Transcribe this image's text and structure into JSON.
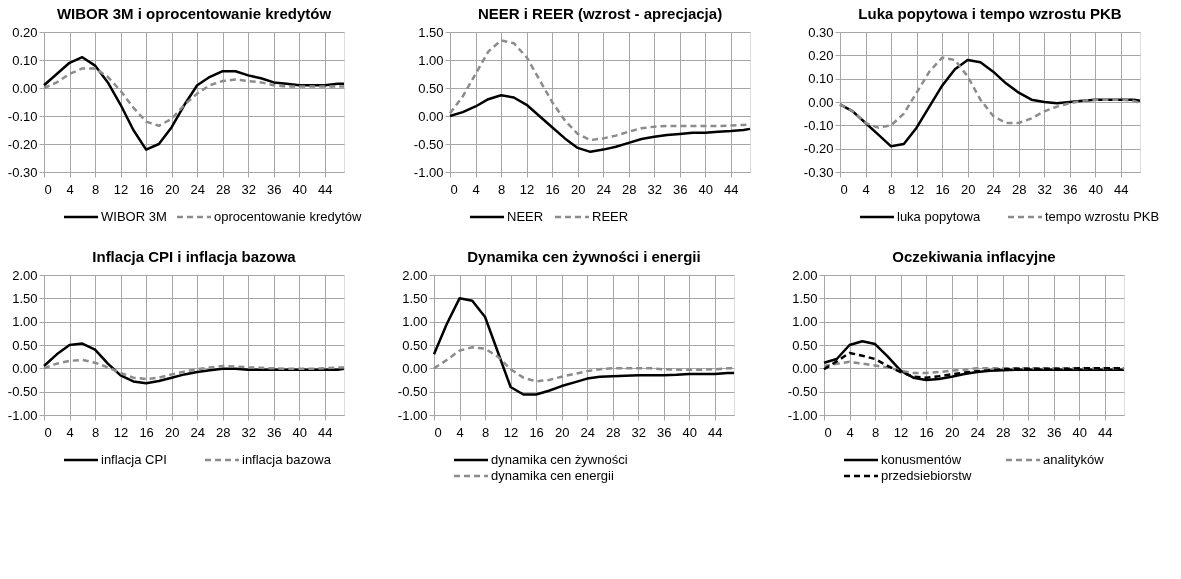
{
  "chart_data": [
    {
      "type": "line",
      "title": "WIBOR 3M i oprocentowanie kredytów",
      "legend": "bottom",
      "grid": true,
      "x": [
        0,
        2,
        4,
        6,
        8,
        10,
        12,
        14,
        16,
        18,
        20,
        22,
        24,
        26,
        28,
        30,
        32,
        34,
        36,
        38,
        40,
        42,
        44,
        46,
        47
      ],
      "xlim": [
        0,
        47
      ],
      "xticks": [
        0,
        4,
        8,
        12,
        16,
        20,
        24,
        28,
        32,
        36,
        40,
        44
      ],
      "ylim": [
        -0.3,
        0.2
      ],
      "yticks": [
        {
          "value": -0.3,
          "label": "-0.30"
        },
        {
          "value": -0.2,
          "label": "-0.20"
        },
        {
          "value": -0.1,
          "label": "-0.10"
        },
        {
          "value": 0,
          "label": "0.00"
        },
        {
          "value": 0.1,
          "label": "0.10"
        },
        {
          "value": 0.2,
          "label": "0.20"
        }
      ],
      "series": [
        {
          "name": "WIBOR 3M",
          "color": "#000000",
          "line_style": "solid",
          "values": [
            0.01,
            0.05,
            0.09,
            0.11,
            0.08,
            0.02,
            -0.06,
            -0.15,
            -0.22,
            -0.2,
            -0.14,
            -0.06,
            0.01,
            0.04,
            0.06,
            0.06,
            0.045,
            0.035,
            0.02,
            0.015,
            0.01,
            0.01,
            0.01,
            0.015,
            0.015
          ]
        },
        {
          "name": "oprocentowanie kredytów",
          "color": "#8c8c8c",
          "line_style": "dashed",
          "values": [
            0.0,
            0.02,
            0.05,
            0.07,
            0.07,
            0.04,
            -0.01,
            -0.07,
            -0.12,
            -0.135,
            -0.11,
            -0.06,
            -0.02,
            0.01,
            0.025,
            0.03,
            0.025,
            0.02,
            0.01,
            0.005,
            0.005,
            0.005,
            0.005,
            0.005,
            0.005
          ]
        }
      ]
    },
    {
      "type": "line",
      "title": "NEER i REER (wzrost - aprecjacja)",
      "legend": "bottom",
      "grid": true,
      "x": [
        0,
        2,
        4,
        6,
        8,
        10,
        12,
        14,
        16,
        18,
        20,
        22,
        24,
        26,
        28,
        30,
        32,
        34,
        36,
        38,
        40,
        42,
        44,
        46,
        47
      ],
      "xlim": [
        0,
        47
      ],
      "xticks": [
        0,
        4,
        8,
        12,
        16,
        20,
        24,
        28,
        32,
        36,
        40,
        44
      ],
      "ylim": [
        -1.0,
        1.5
      ],
      "yticks": [
        {
          "value": -1.0,
          "label": "-1.00"
        },
        {
          "value": -0.5,
          "label": "-0.50"
        },
        {
          "value": 0,
          "label": "0.00"
        },
        {
          "value": 0.5,
          "label": "0.50"
        },
        {
          "value": 1.0,
          "label": "1.00"
        },
        {
          "value": 1.5,
          "label": "1.50"
        }
      ],
      "series": [
        {
          "name": "NEER",
          "color": "#000000",
          "line_style": "solid",
          "values": [
            0.0,
            0.07,
            0.17,
            0.3,
            0.37,
            0.33,
            0.2,
            0.0,
            -0.2,
            -0.4,
            -0.57,
            -0.64,
            -0.6,
            -0.55,
            -0.48,
            -0.41,
            -0.37,
            -0.34,
            -0.32,
            -0.3,
            -0.3,
            -0.28,
            -0.27,
            -0.25,
            -0.23
          ]
        },
        {
          "name": "REER",
          "color": "#8c8c8c",
          "line_style": "dashed",
          "values": [
            0.05,
            0.35,
            0.75,
            1.15,
            1.35,
            1.3,
            1.05,
            0.65,
            0.25,
            -0.08,
            -0.32,
            -0.43,
            -0.4,
            -0.35,
            -0.28,
            -0.22,
            -0.19,
            -0.18,
            -0.18,
            -0.18,
            -0.18,
            -0.18,
            -0.17,
            -0.16,
            -0.15
          ]
        }
      ]
    },
    {
      "type": "line",
      "title": "Luka popytowa i tempo wzrostu PKB",
      "legend": "bottom",
      "grid": true,
      "x": [
        0,
        2,
        4,
        6,
        8,
        10,
        12,
        14,
        16,
        18,
        20,
        22,
        24,
        26,
        28,
        30,
        32,
        34,
        36,
        38,
        40,
        42,
        44,
        46,
        47
      ],
      "xlim": [
        0,
        47
      ],
      "xticks": [
        0,
        4,
        8,
        12,
        16,
        20,
        24,
        28,
        32,
        36,
        40,
        44
      ],
      "ylim": [
        -0.3,
        0.3
      ],
      "yticks": [
        {
          "value": -0.3,
          "label": "-0.30"
        },
        {
          "value": -0.2,
          "label": "-0.20"
        },
        {
          "value": -0.1,
          "label": "-0.10"
        },
        {
          "value": 0,
          "label": "0.00"
        },
        {
          "value": 0.1,
          "label": "0.10"
        },
        {
          "value": 0.2,
          "label": "0.20"
        },
        {
          "value": 0.3,
          "label": "0.30"
        }
      ],
      "series": [
        {
          "name": "luka popytowa",
          "color": "#000000",
          "line_style": "solid",
          "values": [
            -0.01,
            -0.04,
            -0.09,
            -0.14,
            -0.19,
            -0.18,
            -0.11,
            -0.02,
            0.07,
            0.14,
            0.18,
            0.17,
            0.13,
            0.08,
            0.04,
            0.01,
            0.0,
            -0.005,
            0.0,
            0.005,
            0.01,
            0.01,
            0.01,
            0.01,
            0.005
          ]
        },
        {
          "name": "tempo wzrostu PKB",
          "color": "#8c8c8c",
          "line_style": "dashed",
          "values": [
            -0.01,
            -0.04,
            -0.09,
            -0.11,
            -0.1,
            -0.05,
            0.04,
            0.13,
            0.19,
            0.18,
            0.11,
            0.01,
            -0.06,
            -0.09,
            -0.09,
            -0.07,
            -0.04,
            -0.02,
            -0.005,
            0.005,
            0.01,
            0.01,
            0.01,
            0.005,
            -0.005
          ]
        }
      ]
    },
    {
      "type": "line",
      "title": "Inflacja CPI i inflacja bazowa",
      "legend": "bottom",
      "grid": true,
      "x": [
        0,
        2,
        4,
        6,
        8,
        10,
        12,
        14,
        16,
        18,
        20,
        22,
        24,
        26,
        28,
        30,
        32,
        34,
        36,
        38,
        40,
        42,
        44,
        46,
        47
      ],
      "xlim": [
        0,
        47
      ],
      "xticks": [
        0,
        4,
        8,
        12,
        16,
        20,
        24,
        28,
        32,
        36,
        40,
        44
      ],
      "ylim": [
        -1.0,
        2.0
      ],
      "yticks": [
        {
          "value": -1.0,
          "label": "-1.00"
        },
        {
          "value": -0.5,
          "label": "-0.50"
        },
        {
          "value": 0,
          "label": "0.00"
        },
        {
          "value": 0.5,
          "label": "0.50"
        },
        {
          "value": 1.0,
          "label": "1.00"
        },
        {
          "value": 1.5,
          "label": "1.50"
        },
        {
          "value": 2.0,
          "label": "2.00"
        }
      ],
      "series": [
        {
          "name": "inflacja CPI",
          "color": "#000000",
          "line_style": "solid",
          "values": [
            0.05,
            0.3,
            0.5,
            0.53,
            0.4,
            0.1,
            -0.15,
            -0.28,
            -0.32,
            -0.27,
            -0.2,
            -0.13,
            -0.08,
            -0.04,
            -0.01,
            -0.01,
            -0.03,
            -0.03,
            -0.03,
            -0.03,
            -0.03,
            -0.03,
            -0.03,
            -0.03,
            -0.01
          ]
        },
        {
          "name": "inflacja bazowa",
          "color": "#8c8c8c",
          "line_style": "dashed",
          "values": [
            0.0,
            0.1,
            0.16,
            0.18,
            0.12,
            0.02,
            -0.1,
            -0.2,
            -0.23,
            -0.2,
            -0.13,
            -0.07,
            -0.02,
            0.02,
            0.05,
            0.04,
            0.02,
            0.01,
            0.0,
            -0.01,
            -0.01,
            -0.01,
            0.0,
            0.02,
            0.02
          ]
        }
      ]
    },
    {
      "type": "line",
      "title": "Dynamika cen żywności i energii",
      "legend": "bottom",
      "grid": true,
      "x": [
        0,
        2,
        4,
        6,
        8,
        10,
        12,
        14,
        16,
        18,
        20,
        22,
        24,
        26,
        28,
        30,
        32,
        34,
        36,
        38,
        40,
        42,
        44,
        46,
        47
      ],
      "xlim": [
        0,
        47
      ],
      "xticks": [
        0,
        4,
        8,
        12,
        16,
        20,
        24,
        28,
        32,
        36,
        40,
        44
      ],
      "ylim": [
        -1.0,
        2.0
      ],
      "yticks": [
        {
          "value": -1.0,
          "label": "-1.00"
        },
        {
          "value": -0.5,
          "label": "-0.50"
        },
        {
          "value": 0,
          "label": "0.00"
        },
        {
          "value": 0.5,
          "label": "0.50"
        },
        {
          "value": 1.0,
          "label": "1.00"
        },
        {
          "value": 1.5,
          "label": "1.50"
        },
        {
          "value": 2.0,
          "label": "2.00"
        }
      ],
      "series": [
        {
          "name": "dynamika cen żywności",
          "color": "#000000",
          "line_style": "solid",
          "values": [
            0.3,
            0.95,
            1.5,
            1.45,
            1.1,
            0.35,
            -0.4,
            -0.56,
            -0.56,
            -0.48,
            -0.38,
            -0.3,
            -0.22,
            -0.18,
            -0.17,
            -0.16,
            -0.15,
            -0.15,
            -0.15,
            -0.14,
            -0.12,
            -0.12,
            -0.12,
            -0.1,
            -0.1
          ]
        },
        {
          "name": "dynamika cen energii",
          "color": "#8c8c8c",
          "line_style": "dashed",
          "values": [
            0.0,
            0.18,
            0.38,
            0.45,
            0.42,
            0.25,
            -0.02,
            -0.2,
            -0.28,
            -0.25,
            -0.18,
            -0.12,
            -0.06,
            -0.02,
            0.0,
            0.0,
            0.0,
            0.0,
            -0.02,
            -0.03,
            -0.03,
            -0.03,
            -0.02,
            0.0,
            0.0
          ]
        }
      ]
    },
    {
      "type": "line",
      "title": "Oczekiwania inflacyjne",
      "legend": "bottom",
      "grid": true,
      "x": [
        0,
        2,
        4,
        6,
        8,
        10,
        12,
        14,
        16,
        18,
        20,
        22,
        24,
        26,
        28,
        30,
        32,
        34,
        36,
        38,
        40,
        42,
        44,
        46,
        47
      ],
      "xlim": [
        0,
        47
      ],
      "xticks": [
        0,
        4,
        8,
        12,
        16,
        20,
        24,
        28,
        32,
        36,
        40,
        44
      ],
      "ylim": [
        -1.0,
        2.0
      ],
      "yticks": [
        {
          "value": -1.0,
          "label": "-1.00"
        },
        {
          "value": -0.5,
          "label": "-0.50"
        },
        {
          "value": 0,
          "label": "0.00"
        },
        {
          "value": 0.5,
          "label": "0.50"
        },
        {
          "value": 1.0,
          "label": "1.00"
        },
        {
          "value": 1.5,
          "label": "1.50"
        },
        {
          "value": 2.0,
          "label": "2.00"
        }
      ],
      "series": [
        {
          "name": "konusmentów",
          "color": "#000000",
          "line_style": "solid",
          "values": [
            0.12,
            0.2,
            0.5,
            0.58,
            0.52,
            0.25,
            -0.05,
            -0.2,
            -0.25,
            -0.23,
            -0.18,
            -0.12,
            -0.08,
            -0.05,
            -0.04,
            -0.03,
            -0.03,
            -0.03,
            -0.03,
            -0.03,
            -0.03,
            -0.03,
            -0.03,
            -0.03,
            -0.03
          ]
        },
        {
          "name": "analityków",
          "color": "#8c8c8c",
          "line_style": "dashed",
          "values": [
            0.05,
            0.1,
            0.14,
            0.1,
            0.06,
            0.02,
            -0.05,
            -0.1,
            -0.1,
            -0.08,
            -0.05,
            -0.03,
            0.0,
            0.0,
            0.0,
            0.0,
            0.0,
            0.0,
            0.0,
            0.0,
            0.0,
            0.0,
            0.0,
            0.0,
            0.0
          ]
        },
        {
          "name": "przedsiebiorstw",
          "color": "#000000",
          "line_style": "dashed",
          "values": [
            -0.02,
            0.15,
            0.33,
            0.27,
            0.2,
            0.05,
            -0.08,
            -0.18,
            -0.2,
            -0.17,
            -0.13,
            -0.09,
            -0.06,
            -0.04,
            -0.02,
            -0.01,
            -0.01,
            -0.01,
            -0.01,
            -0.01,
            0.0,
            0.0,
            0.0,
            0.0,
            0.0
          ]
        }
      ]
    }
  ]
}
